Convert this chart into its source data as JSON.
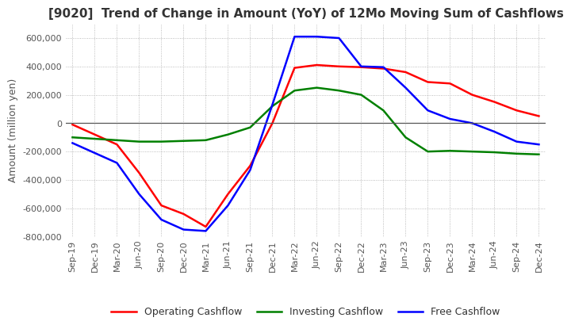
{
  "title": "[9020]  Trend of Change in Amount (YoY) of 12Mo Moving Sum of Cashflows",
  "ylabel": "Amount (million yen)",
  "title_fontsize": 11,
  "label_fontsize": 9,
  "tick_fontsize": 8,
  "background_color": "#ffffff",
  "grid_color": "#aaaaaa",
  "x_labels": [
    "Sep-19",
    "Dec-19",
    "Mar-20",
    "Jun-20",
    "Sep-20",
    "Dec-20",
    "Mar-21",
    "Jun-21",
    "Sep-21",
    "Dec-21",
    "Mar-22",
    "Jun-22",
    "Sep-22",
    "Dec-22",
    "Mar-23",
    "Jun-23",
    "Sep-23",
    "Dec-23",
    "Mar-24",
    "Jun-24",
    "Sep-24",
    "Dec-24"
  ],
  "operating_cashflow": [
    -10000,
    -80000,
    -150000,
    -350000,
    -580000,
    -640000,
    -730000,
    -500000,
    -300000,
    0,
    390000,
    410000,
    400000,
    395000,
    385000,
    360000,
    290000,
    280000,
    200000,
    150000,
    90000,
    50000
  ],
  "investing_cashflow": [
    -100000,
    -110000,
    -120000,
    -130000,
    -130000,
    -125000,
    -120000,
    -80000,
    -30000,
    120000,
    230000,
    250000,
    230000,
    200000,
    90000,
    -100000,
    -200000,
    -195000,
    -200000,
    -205000,
    -215000,
    -220000
  ],
  "free_cashflow": [
    -140000,
    -210000,
    -280000,
    -500000,
    -680000,
    -750000,
    -760000,
    -580000,
    -330000,
    130000,
    610000,
    610000,
    600000,
    400000,
    395000,
    250000,
    90000,
    30000,
    0,
    -60000,
    -130000,
    -150000
  ],
  "operating_color": "#ff0000",
  "investing_color": "#008000",
  "free_color": "#0000ff",
  "ylim": [
    -800000,
    700000
  ],
  "yticks": [
    -800000,
    -600000,
    -400000,
    -200000,
    0,
    200000,
    400000,
    600000
  ]
}
